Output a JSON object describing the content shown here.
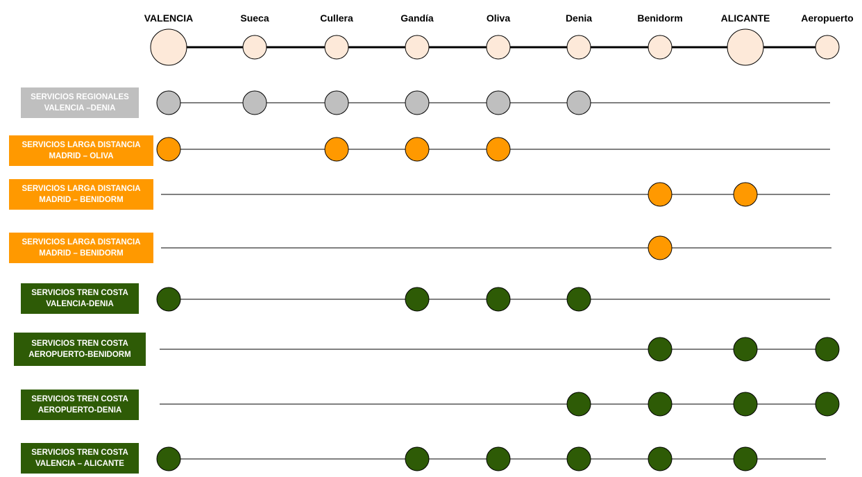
{
  "stations": [
    "VALENCIA",
    "Sueca",
    "Cullera",
    "Gandía",
    "Oliva",
    "Denia",
    "Benidorm",
    "ALICANTE",
    "Aeropuerto"
  ],
  "main_stations": [
    "VALENCIA",
    "ALICANTE"
  ],
  "colors": {
    "station_fill": "#fde9d9",
    "regional": "#bfbfbf",
    "larga_distancia": "#ff9900",
    "tren_costa": "#2e5b06",
    "outline": "#000000"
  },
  "services": [
    {
      "line1": "SERVICIOS REGIONALES",
      "line2": "VALENCIA –DENIA",
      "color": "regional",
      "stops": [
        "VALENCIA",
        "Sueca",
        "Cullera",
        "Gandía",
        "Oliva",
        "Denia"
      ]
    },
    {
      "line1": "SERVICIOS LARGA DISTANCIA",
      "line2": "MADRID – OLIVA",
      "color": "larga_distancia",
      "stops": [
        "VALENCIA",
        "Cullera",
        "Gandía",
        "Oliva"
      ]
    },
    {
      "line1": "SERVICIOS LARGA DISTANCIA",
      "line2": "MADRID – BENIDORM",
      "color": "larga_distancia",
      "stops": [
        "Benidorm",
        "ALICANTE"
      ]
    },
    {
      "line1": "SERVICIOS LARGA DISTANCIA",
      "line2": "MADRID – BENIDORM",
      "color": "larga_distancia",
      "stops": [
        "Benidorm"
      ]
    },
    {
      "line1": "SERVICIOS TREN COSTA",
      "line2": "VALENCIA-DENIA",
      "color": "tren_costa",
      "stops": [
        "VALENCIA",
        "Gandía",
        "Oliva",
        "Denia"
      ]
    },
    {
      "line1": "SERVICIOS TREN COSTA",
      "line2": "AEROPUERTO-BENIDORM",
      "color": "tren_costa",
      "stops": [
        "Benidorm",
        "ALICANTE",
        "Aeropuerto"
      ]
    },
    {
      "line1": "SERVICIOS TREN COSTA",
      "line2": "AEROPUERTO-DENIA",
      "color": "tren_costa",
      "stops": [
        "Denia",
        "Benidorm",
        "ALICANTE",
        "Aeropuerto"
      ]
    },
    {
      "line1": "SERVICIOS TREN COSTA",
      "line2": "VALENCIA – ALICANTE",
      "color": "tren_costa",
      "stops": [
        "VALENCIA",
        "Gandía",
        "Oliva",
        "Denia",
        "Benidorm",
        "ALICANTE"
      ]
    }
  ]
}
